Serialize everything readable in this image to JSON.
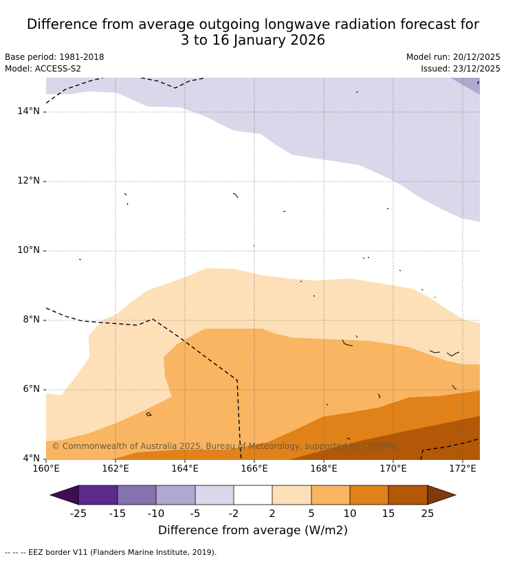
{
  "title_line1": "Difference from average outgoing longwave radiation forecast for",
  "title_line2": "3 to 16 January 2026",
  "base_period": "Base period: 1981-2018",
  "model": "Model: ACCESS-S2",
  "model_run": "Model run: 20/12/2025",
  "issued": "Issued: 23/12/2025",
  "copyright": "© Commonwealth of Australia 2025, Bureau of Meteorology, supported by COSPPac",
  "y_ticks": [
    "14°N",
    "12°N",
    "10°N",
    "8°N",
    "6°N",
    "4°N"
  ],
  "x_ticks": [
    "160°E",
    "162°E",
    "164°E",
    "166°E",
    "168°E",
    "170°E",
    "172°E"
  ],
  "colorbar": {
    "labels": [
      "-25",
      "-15",
      "-10",
      "-5",
      "-2",
      "2",
      "5",
      "10",
      "15",
      "25"
    ],
    "colors": {
      "below": "#3d0f52",
      "b1": "#5b2b8b",
      "b2": "#8573b0",
      "b3": "#b0a8d2",
      "b4": "#d8d8ea",
      "b5": "#ffffff",
      "b6": "#fde0b8",
      "b7": "#f9b562",
      "b8": "#e0811a",
      "b9": "#b35806",
      "above": "#7f3b08"
    },
    "title": "Difference from average (W/m2)"
  },
  "footer": "-- -- -- EEZ border V11 (Flanders Marine Institute, 2019)."
}
